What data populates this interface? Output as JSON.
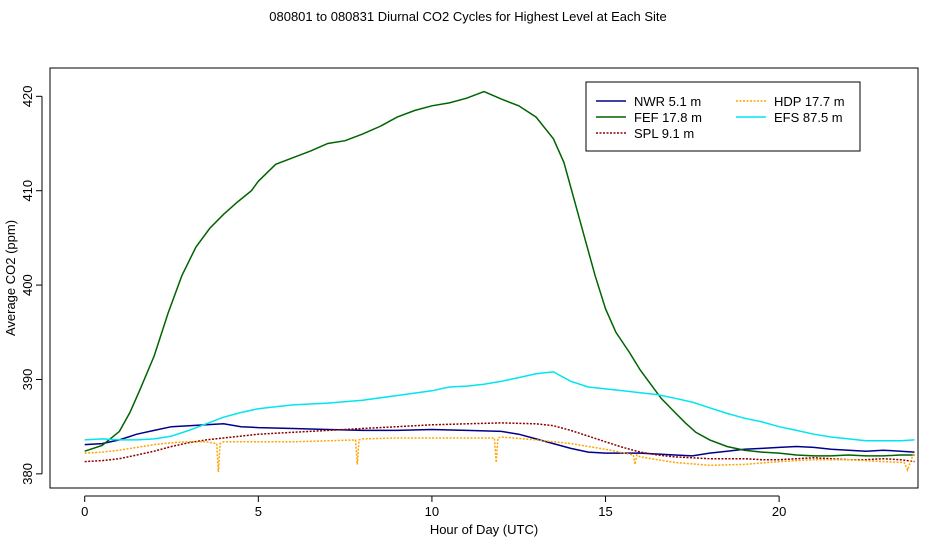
{
  "chart_data": {
    "type": "line",
    "title": "080801  to  080831 Diurnal CO2 Cycles for Highest Level at Each Site",
    "xlabel": "Hour of Day (UTC)",
    "ylabel": "Average CO2 (ppm)",
    "xlim": [
      -1,
      24
    ],
    "ylim": [
      378.5,
      423
    ],
    "xticks": [
      0,
      5,
      10,
      15,
      20
    ],
    "yticks": [
      380,
      390,
      400,
      410,
      420
    ],
    "grid": false,
    "legend_position": "top-right",
    "series": [
      {
        "name": "NWR   5.1 m",
        "color": "#00008b",
        "dash": "",
        "points": [
          [
            0,
            383.1
          ],
          [
            0.5,
            383.2
          ],
          [
            1,
            383.6
          ],
          [
            1.5,
            384.2
          ],
          [
            2,
            384.6
          ],
          [
            2.5,
            385.0
          ],
          [
            3,
            385.1
          ],
          [
            3.5,
            385.2
          ],
          [
            4,
            385.3
          ],
          [
            4.5,
            385.0
          ],
          [
            5,
            384.9
          ],
          [
            6,
            384.8
          ],
          [
            7,
            384.7
          ],
          [
            8,
            384.6
          ],
          [
            9,
            384.6
          ],
          [
            10,
            384.7
          ],
          [
            11,
            384.6
          ],
          [
            12,
            384.5
          ],
          [
            12.5,
            384.2
          ],
          [
            13,
            383.7
          ],
          [
            13.5,
            383.2
          ],
          [
            14,
            382.7
          ],
          [
            14.5,
            382.3
          ],
          [
            15,
            382.2
          ],
          [
            16,
            382.2
          ],
          [
            17,
            382.0
          ],
          [
            17.5,
            381.9
          ],
          [
            18,
            382.2
          ],
          [
            18.5,
            382.4
          ],
          [
            19,
            382.6
          ],
          [
            19.5,
            382.7
          ],
          [
            20,
            382.8
          ],
          [
            20.5,
            382.9
          ],
          [
            21,
            382.8
          ],
          [
            21.5,
            382.6
          ],
          [
            22,
            382.5
          ],
          [
            22.5,
            382.4
          ],
          [
            23,
            382.5
          ],
          [
            23.5,
            382.4
          ],
          [
            23.9,
            382.3
          ]
        ]
      },
      {
        "name": "FEF   17.8 m",
        "color": "#006400",
        "dash": "",
        "points": [
          [
            0,
            382.4
          ],
          [
            0.5,
            383.0
          ],
          [
            1,
            384.5
          ],
          [
            1.3,
            386.5
          ],
          [
            1.6,
            389.0
          ],
          [
            2,
            392.5
          ],
          [
            2.4,
            397.0
          ],
          [
            2.8,
            401.0
          ],
          [
            3.2,
            404.0
          ],
          [
            3.6,
            406.0
          ],
          [
            4,
            407.5
          ],
          [
            4.4,
            408.8
          ],
          [
            4.8,
            410.0
          ],
          [
            5,
            411.0
          ],
          [
            5.5,
            412.8
          ],
          [
            6,
            413.5
          ],
          [
            6.5,
            414.2
          ],
          [
            7,
            415.0
          ],
          [
            7.5,
            415.3
          ],
          [
            8,
            416.0
          ],
          [
            8.5,
            416.8
          ],
          [
            9,
            417.8
          ],
          [
            9.5,
            418.5
          ],
          [
            10,
            419.0
          ],
          [
            10.5,
            419.3
          ],
          [
            11,
            419.8
          ],
          [
            11.5,
            420.5
          ],
          [
            12,
            419.7
          ],
          [
            12.5,
            419.0
          ],
          [
            13,
            417.8
          ],
          [
            13.5,
            415.5
          ],
          [
            13.8,
            413.0
          ],
          [
            14.1,
            409.0
          ],
          [
            14.4,
            405.0
          ],
          [
            14.7,
            401.0
          ],
          [
            15,
            397.5
          ],
          [
            15.3,
            395.0
          ],
          [
            15.7,
            392.8
          ],
          [
            16,
            391.0
          ],
          [
            16.3,
            389.5
          ],
          [
            16.6,
            388.0
          ],
          [
            17,
            386.5
          ],
          [
            17.3,
            385.4
          ],
          [
            17.6,
            384.4
          ],
          [
            18,
            383.6
          ],
          [
            18.5,
            382.9
          ],
          [
            19,
            382.5
          ],
          [
            19.5,
            382.3
          ],
          [
            20,
            382.2
          ],
          [
            20.5,
            382.0
          ],
          [
            21,
            381.9
          ],
          [
            21.5,
            381.9
          ],
          [
            22,
            382.0
          ],
          [
            22.5,
            381.9
          ],
          [
            23,
            381.9
          ],
          [
            23.5,
            382.0
          ],
          [
            23.9,
            382.0
          ]
        ]
      },
      {
        "name": "SPL   9.1 m",
        "color": "#8b0000",
        "dash": "2,1.5",
        "points": [
          [
            0,
            381.3
          ],
          [
            0.5,
            381.4
          ],
          [
            1,
            381.6
          ],
          [
            1.5,
            382.0
          ],
          [
            2,
            382.4
          ],
          [
            2.5,
            382.9
          ],
          [
            3,
            383.3
          ],
          [
            3.5,
            383.6
          ],
          [
            4,
            383.8
          ],
          [
            4.5,
            384.0
          ],
          [
            5,
            384.2
          ],
          [
            6,
            384.4
          ],
          [
            7,
            384.6
          ],
          [
            8,
            384.8
          ],
          [
            9,
            385.0
          ],
          [
            10,
            385.2
          ],
          [
            11,
            385.3
          ],
          [
            12,
            385.4
          ],
          [
            13,
            385.3
          ],
          [
            13.5,
            385.1
          ],
          [
            14,
            384.6
          ],
          [
            14.5,
            384.0
          ],
          [
            15,
            383.4
          ],
          [
            15.5,
            382.8
          ],
          [
            16,
            382.3
          ],
          [
            16.5,
            382.0
          ],
          [
            17,
            381.8
          ],
          [
            17.5,
            381.7
          ],
          [
            18,
            381.6
          ],
          [
            18.5,
            381.6
          ],
          [
            19,
            381.6
          ],
          [
            19.5,
            381.5
          ],
          [
            20,
            381.5
          ],
          [
            20.5,
            381.6
          ],
          [
            21,
            381.7
          ],
          [
            21.5,
            381.6
          ],
          [
            22,
            381.5
          ],
          [
            22.5,
            381.5
          ],
          [
            23,
            381.6
          ],
          [
            23.5,
            381.5
          ],
          [
            23.9,
            381.3
          ]
        ]
      },
      {
        "name": "HDP   17.7 m",
        "color": "#ffa500",
        "dash": "2,1.5",
        "points": [
          [
            0,
            382.2
          ],
          [
            0.5,
            382.3
          ],
          [
            1,
            382.5
          ],
          [
            1.5,
            382.8
          ],
          [
            2,
            383.1
          ],
          [
            2.5,
            383.3
          ],
          [
            3,
            383.4
          ],
          [
            3.5,
            383.4
          ],
          [
            3.8,
            383.2
          ],
          [
            3.85,
            380.2
          ],
          [
            3.9,
            383.2
          ],
          [
            4,
            383.4
          ],
          [
            5,
            383.4
          ],
          [
            6,
            383.4
          ],
          [
            7,
            383.5
          ],
          [
            7.8,
            383.6
          ],
          [
            7.85,
            381.0
          ],
          [
            7.9,
            383.6
          ],
          [
            8,
            383.7
          ],
          [
            9,
            383.8
          ],
          [
            10,
            383.8
          ],
          [
            11,
            383.8
          ],
          [
            11.8,
            383.8
          ],
          [
            11.85,
            381.2
          ],
          [
            11.9,
            383.8
          ],
          [
            12,
            383.9
          ],
          [
            13,
            383.6
          ],
          [
            14,
            383.2
          ],
          [
            15,
            382.6
          ],
          [
            15.8,
            382.0
          ],
          [
            15.85,
            381.0
          ],
          [
            15.9,
            382.0
          ],
          [
            16,
            381.8
          ],
          [
            17,
            381.2
          ],
          [
            18,
            380.9
          ],
          [
            19,
            381.0
          ],
          [
            20,
            381.3
          ],
          [
            21,
            381.5
          ],
          [
            22,
            381.5
          ],
          [
            23,
            381.3
          ],
          [
            23.6,
            381.2
          ],
          [
            23.7,
            380.4
          ],
          [
            23.8,
            381.5
          ],
          [
            23.9,
            382.3
          ]
        ]
      },
      {
        "name": "EFS   87.5 m",
        "color": "#00e5ee",
        "dash": "",
        "points": [
          [
            0,
            383.6
          ],
          [
            0.5,
            383.7
          ],
          [
            1,
            383.6
          ],
          [
            1.5,
            383.6
          ],
          [
            2,
            383.7
          ],
          [
            2.5,
            384.0
          ],
          [
            3,
            384.6
          ],
          [
            3.5,
            385.3
          ],
          [
            4,
            386.0
          ],
          [
            4.5,
            386.5
          ],
          [
            5,
            386.9
          ],
          [
            5.5,
            387.1
          ],
          [
            6,
            387.3
          ],
          [
            7,
            387.5
          ],
          [
            8,
            387.8
          ],
          [
            9,
            388.3
          ],
          [
            10,
            388.8
          ],
          [
            10.5,
            389.2
          ],
          [
            11,
            389.3
          ],
          [
            11.5,
            389.5
          ],
          [
            12,
            389.8
          ],
          [
            12.5,
            390.2
          ],
          [
            13,
            390.6
          ],
          [
            13.5,
            390.8
          ],
          [
            14,
            389.8
          ],
          [
            14.5,
            389.2
          ],
          [
            15,
            389.0
          ],
          [
            15.5,
            388.8
          ],
          [
            16,
            388.6
          ],
          [
            16.5,
            388.4
          ],
          [
            17,
            388.0
          ],
          [
            17.5,
            387.6
          ],
          [
            18,
            387.0
          ],
          [
            18.5,
            386.4
          ],
          [
            19,
            385.9
          ],
          [
            19.5,
            385.5
          ],
          [
            20,
            385.0
          ],
          [
            20.5,
            384.6
          ],
          [
            21,
            384.2
          ],
          [
            21.5,
            383.9
          ],
          [
            22,
            383.7
          ],
          [
            22.5,
            383.5
          ],
          [
            23,
            383.5
          ],
          [
            23.5,
            383.5
          ],
          [
            23.9,
            383.6
          ]
        ]
      }
    ]
  }
}
